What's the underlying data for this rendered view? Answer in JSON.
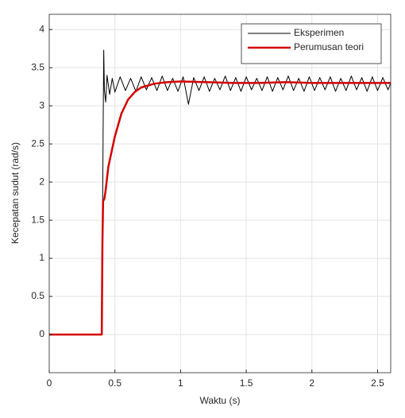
{
  "chart_data": {
    "type": "line",
    "xlabel": "Waktu (s)",
    "ylabel": "Kecepatan sudut (rad/s)",
    "xlim": [
      0,
      2.6
    ],
    "ylim": [
      -0.5,
      4.2
    ],
    "xticks": [
      0,
      0.5,
      1,
      1.5,
      2,
      2.5
    ],
    "yticks": [
      0,
      0.5,
      1,
      1.5,
      2,
      2.5,
      3,
      3.5,
      4
    ],
    "grid": true,
    "legend": "upper-right",
    "series": [
      {
        "name": "Eksperimen",
        "color": "#000000",
        "width": 1,
        "x": [
          0,
          0.4,
          0.41,
          0.415,
          0.42,
          0.43,
          0.44,
          0.46,
          0.48,
          0.5,
          0.54,
          0.58,
          0.62,
          0.66,
          0.7,
          0.74,
          0.78,
          0.82,
          0.86,
          0.9,
          0.94,
          0.98,
          1.02,
          1.06,
          1.1,
          1.14,
          1.18,
          1.22,
          1.26,
          1.3,
          1.34,
          1.38,
          1.42,
          1.46,
          1.5,
          1.54,
          1.58,
          1.62,
          1.66,
          1.7,
          1.74,
          1.78,
          1.82,
          1.86,
          1.9,
          1.94,
          1.98,
          2.02,
          2.06,
          2.1,
          2.14,
          2.18,
          2.22,
          2.26,
          2.3,
          2.34,
          2.38,
          2.42,
          2.46,
          2.5,
          2.54,
          2.58,
          2.6
        ],
        "values": [
          0,
          0,
          2.6,
          3.73,
          3.2,
          3.05,
          3.4,
          3.15,
          3.36,
          3.18,
          3.38,
          3.2,
          3.36,
          3.19,
          3.38,
          3.21,
          3.37,
          3.2,
          3.39,
          3.2,
          3.36,
          3.19,
          3.38,
          3.02,
          3.37,
          3.2,
          3.38,
          3.19,
          3.36,
          3.21,
          3.39,
          3.2,
          3.37,
          3.19,
          3.38,
          3.21,
          3.36,
          3.2,
          3.38,
          3.19,
          3.37,
          3.21,
          3.39,
          3.2,
          3.36,
          3.19,
          3.38,
          3.2,
          3.37,
          3.21,
          3.38,
          3.19,
          3.36,
          3.2,
          3.39,
          3.21,
          3.37,
          3.19,
          3.38,
          3.2,
          3.37,
          3.21,
          3.3
        ]
      },
      {
        "name": "Perumusan teori",
        "color": "#d40000",
        "width": 2.5,
        "x": [
          0,
          0.4,
          0.405,
          0.41,
          0.42,
          0.43,
          0.45,
          0.5,
          0.55,
          0.6,
          0.65,
          0.7,
          0.8,
          0.9,
          1.0,
          1.2,
          1.4,
          1.6,
          1.8,
          2.0,
          2.2,
          2.4,
          2.6
        ],
        "values": [
          0,
          0,
          1.2,
          1.75,
          1.78,
          1.9,
          2.2,
          2.6,
          2.9,
          3.08,
          3.18,
          3.24,
          3.29,
          3.31,
          3.32,
          3.31,
          3.3,
          3.3,
          3.31,
          3.3,
          3.3,
          3.3,
          3.3
        ]
      }
    ]
  }
}
